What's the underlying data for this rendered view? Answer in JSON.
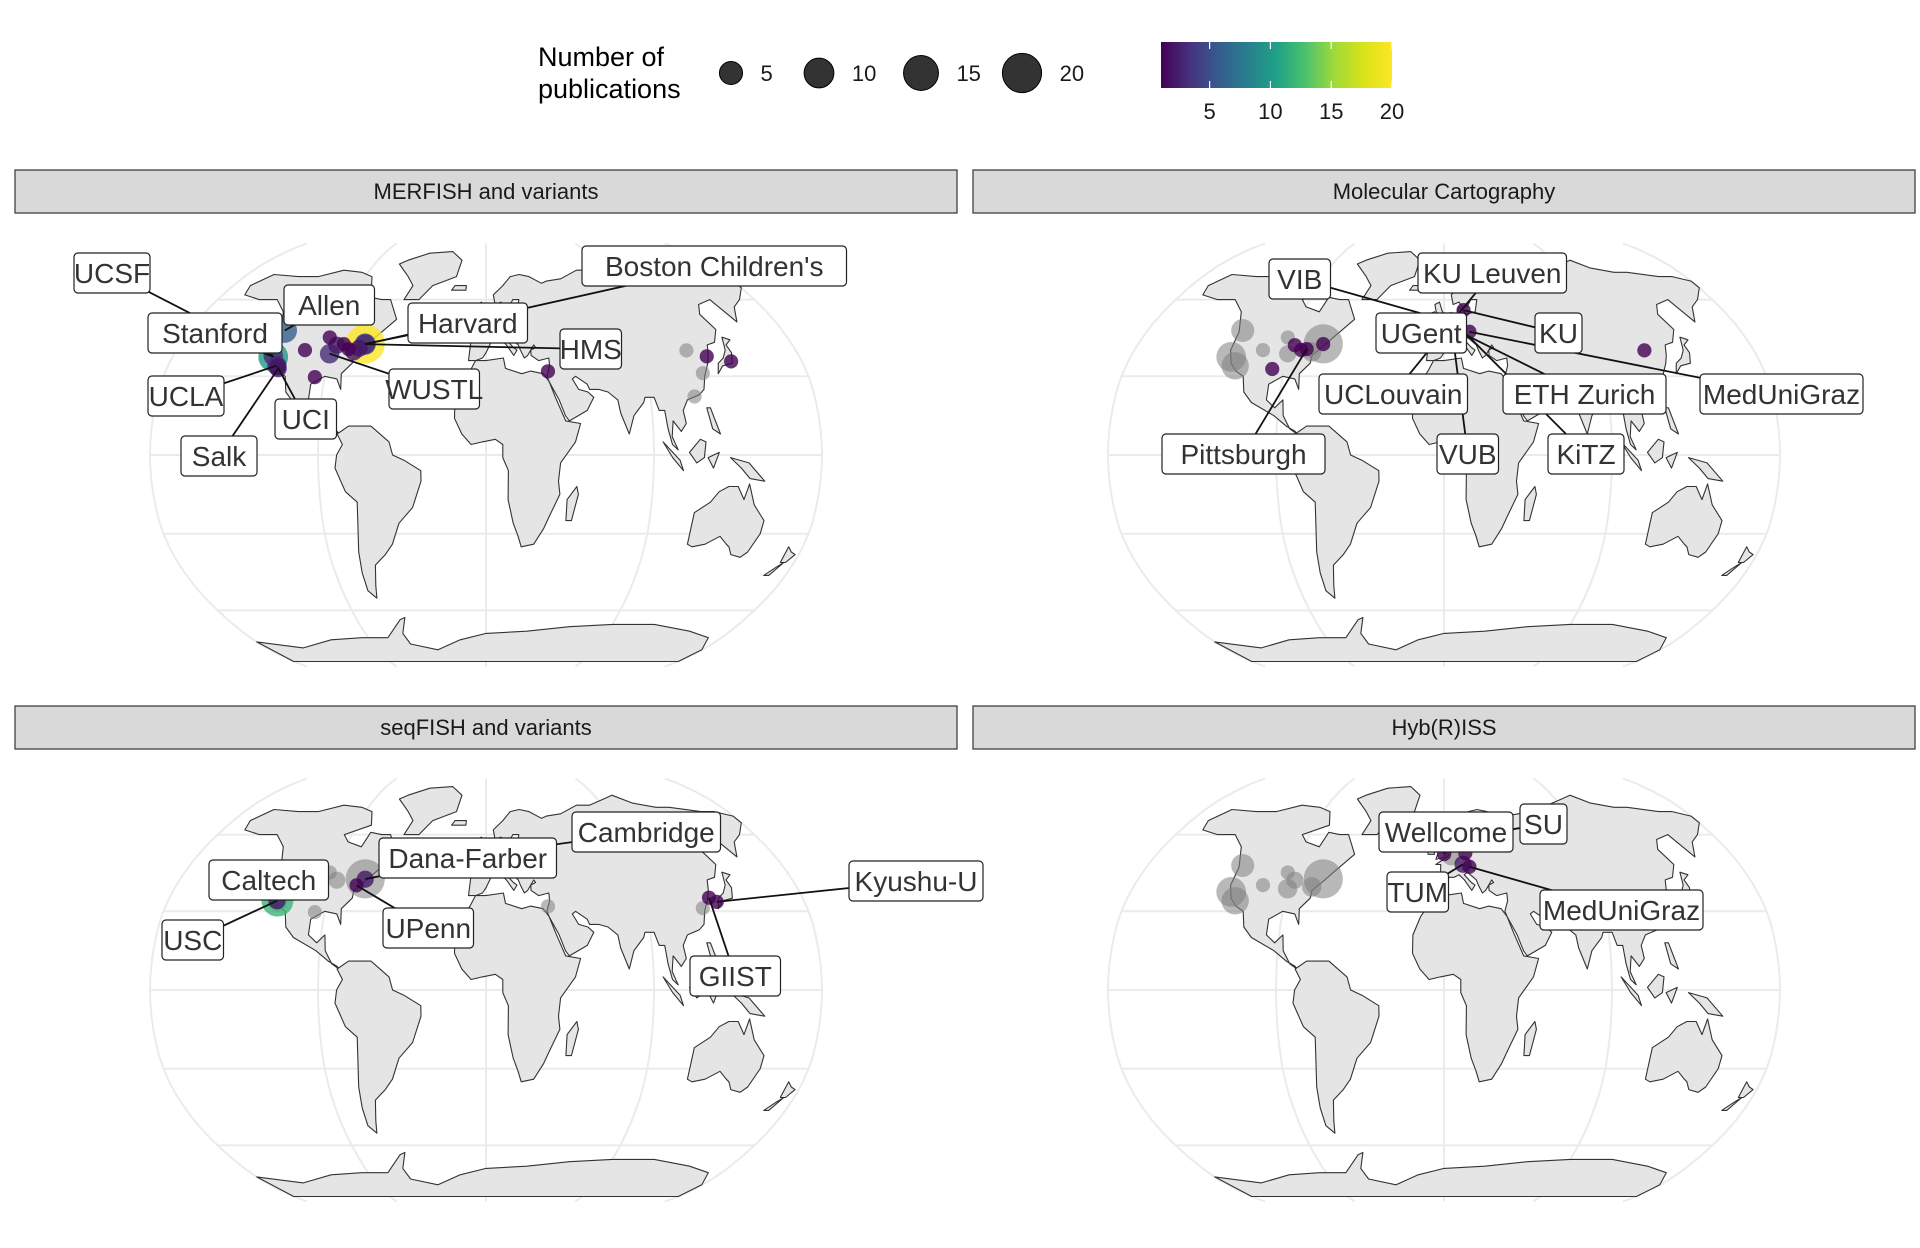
{
  "legend": {
    "size_title_line1": "Number of",
    "size_title_line2": "publications",
    "size_breaks": [
      5,
      10,
      15,
      20
    ],
    "color_breaks": [
      5,
      10,
      15,
      20
    ],
    "color_range": [
      1,
      20
    ],
    "colormap": "viridis"
  },
  "colors": {
    "strip_bg": "#d9d9d9",
    "land": "#e5e5e5",
    "graticule": "#ebebeb",
    "inactive_point": "#808080"
  },
  "chart_data": [
    {
      "type": "scatter",
      "subtype": "geographic bubble map (Robinson projection)",
      "title": "MERFISH and variants",
      "labels": [
        "UCSF",
        "Allen",
        "Stanford",
        "Harvard",
        "Boston Children's",
        "HMS",
        "WUSTL",
        "UCLA",
        "UCI",
        "Salk"
      ],
      "points": [
        {
          "name": "Harvard",
          "lon": -71.1,
          "lat": 42.4,
          "n": 20
        },
        {
          "name": "Boston Children's",
          "lon": -71.1,
          "lat": 42.3,
          "n": 4
        },
        {
          "name": "HMS",
          "lon": -71.1,
          "lat": 42.3,
          "n": 3
        },
        {
          "name": "Allen",
          "lon": -122.3,
          "lat": 47.6,
          "n": 6
        },
        {
          "name": "Stanford",
          "lon": -122.2,
          "lat": 37.4,
          "n": 10
        },
        {
          "name": "UCSF",
          "lon": -122.4,
          "lat": 37.8,
          "n": 3
        },
        {
          "name": "UCLA",
          "lon": -118.4,
          "lat": 34.1,
          "n": 3
        },
        {
          "name": "UCI",
          "lon": -117.8,
          "lat": 33.6,
          "n": 2
        },
        {
          "name": "Salk",
          "lon": -117.2,
          "lat": 32.9,
          "n": 2
        },
        {
          "name": "WUSTL",
          "lon": -90.3,
          "lat": 38.6,
          "n": 3
        },
        {
          "name": "",
          "lon": -93.3,
          "lat": 44.9,
          "n": 1
        },
        {
          "name": "",
          "lon": -87.6,
          "lat": 41.9,
          "n": 2
        },
        {
          "name": "",
          "lon": -83.7,
          "lat": 42.3,
          "n": 1
        },
        {
          "name": "",
          "lon": -80.0,
          "lat": 40.4,
          "n": 1
        },
        {
          "name": "",
          "lon": -76.6,
          "lat": 39.3,
          "n": 2
        },
        {
          "name": "",
          "lon": -74.0,
          "lat": 40.7,
          "n": 2
        },
        {
          "name": "",
          "lon": -105.2,
          "lat": 40.0,
          "n": 1
        },
        {
          "name": "",
          "lon": -95.4,
          "lat": 29.7,
          "n": 1
        },
        {
          "name": "",
          "lon": -0.1,
          "lat": 51.5,
          "n": 2
        },
        {
          "name": "",
          "lon": 4.9,
          "lat": 52.4,
          "n": 1
        },
        {
          "name": "",
          "lon": 8.7,
          "lat": 50.1,
          "n": 1
        },
        {
          "name": "",
          "lon": 13.4,
          "lat": 52.5,
          "n": 1
        },
        {
          "name": "",
          "lon": 34.8,
          "lat": 31.9,
          "n": 1
        },
        {
          "name": "",
          "lon": 126.9,
          "lat": 37.6,
          "n": 1
        },
        {
          "name": "",
          "lon": 139.7,
          "lat": 35.7,
          "n": 1
        }
      ],
      "other_method_points": [
        {
          "lon": 114.2,
          "lat": 22.3,
          "n": 1
        },
        {
          "lon": 121.5,
          "lat": 31.2,
          "n": 1
        },
        {
          "lon": 116.4,
          "lat": 39.9,
          "n": 1
        }
      ]
    },
    {
      "type": "scatter",
      "subtype": "geographic bubble map (Robinson projection)",
      "title": "Molecular Cartography",
      "labels": [
        "VIB",
        "KU Leuven",
        "UGent",
        "KU",
        "UCLouvain",
        "ETH Zurich",
        "MedUniGraz",
        "Pittsburgh",
        "VUB",
        "KiTZ"
      ],
      "points": [
        {
          "name": "VIB",
          "lon": 4.4,
          "lat": 51.0,
          "n": 3
        },
        {
          "name": "KU Leuven",
          "lon": 4.7,
          "lat": 50.9,
          "n": 2
        },
        {
          "name": "UGent",
          "lon": 3.7,
          "lat": 51.1,
          "n": 2
        },
        {
          "name": "KU",
          "lon": 12.6,
          "lat": 55.7,
          "n": 1
        },
        {
          "name": "UCLouvain",
          "lon": 4.6,
          "lat": 50.7,
          "n": 1
        },
        {
          "name": "ETH Zurich",
          "lon": 8.5,
          "lat": 47.4,
          "n": 1
        },
        {
          "name": "MedUniGraz",
          "lon": 15.4,
          "lat": 47.1,
          "n": 1
        },
        {
          "name": "Pittsburgh",
          "lon": -80.0,
          "lat": 40.4,
          "n": 1
        },
        {
          "name": "VUB",
          "lon": 4.4,
          "lat": 50.8,
          "n": 1
        },
        {
          "name": "KiTZ",
          "lon": 8.7,
          "lat": 49.4,
          "n": 1
        },
        {
          "name": "",
          "lon": -87.6,
          "lat": 41.9,
          "n": 1
        },
        {
          "name": "",
          "lon": -83.0,
          "lat": 40.0,
          "n": 1
        },
        {
          "name": "",
          "lon": -71.1,
          "lat": 42.3,
          "n": 1
        },
        {
          "name": "",
          "lon": -96.8,
          "lat": 32.8,
          "n": 1
        },
        {
          "name": "",
          "lon": 116.4,
          "lat": 39.9,
          "n": 1
        }
      ],
      "other_method_points": [
        {
          "lon": -71.1,
          "lat": 42.4,
          "n": 20
        },
        {
          "lon": -122.2,
          "lat": 37.4,
          "n": 10
        },
        {
          "lon": -118.2,
          "lat": 34.0,
          "n": 8
        },
        {
          "lon": -122.3,
          "lat": 47.6,
          "n": 5
        },
        {
          "lon": -76.6,
          "lat": 39.3,
          "n": 3
        },
        {
          "lon": -93.3,
          "lat": 44.9,
          "n": 1
        },
        {
          "lon": -105.2,
          "lat": 40.0,
          "n": 1
        },
        {
          "lon": -90.3,
          "lat": 38.6,
          "n": 2
        },
        {
          "lon": -0.1,
          "lat": 51.5,
          "n": 2
        }
      ]
    },
    {
      "type": "scatter",
      "subtype": "geographic bubble map (Robinson projection)",
      "title": "seqFISH and variants",
      "labels": [
        "Dana-Farber",
        "Cambridge",
        "Caltech",
        "USC",
        "UPenn",
        "Kyushu-U",
        "GIIST"
      ],
      "points": [
        {
          "name": "Caltech",
          "lon": -118.1,
          "lat": 34.1,
          "n": 12
        },
        {
          "name": "USC",
          "lon": -118.3,
          "lat": 34.0,
          "n": 2
        },
        {
          "name": "Dana-Farber",
          "lon": -71.1,
          "lat": 42.3,
          "n": 2
        },
        {
          "name": "UPenn",
          "lon": -75.2,
          "lat": 39.9,
          "n": 1
        },
        {
          "name": "Cambridge",
          "lon": 0.1,
          "lat": 52.2,
          "n": 2
        },
        {
          "name": "Kyushu-U",
          "lon": 130.4,
          "lat": 33.6,
          "n": 1
        },
        {
          "name": "GIIST",
          "lon": 126.8,
          "lat": 35.2,
          "n": 1
        }
      ],
      "other_method_points": [
        {
          "lon": -71.1,
          "lat": 42.4,
          "n": 20
        },
        {
          "lon": -122.2,
          "lat": 37.4,
          "n": 4
        },
        {
          "lon": -117.8,
          "lat": 33.6,
          "n": 3
        },
        {
          "lon": -87.6,
          "lat": 41.9,
          "n": 2
        },
        {
          "lon": -93.3,
          "lat": 44.9,
          "n": 1
        },
        {
          "lon": -105.2,
          "lat": 40.0,
          "n": 1
        },
        {
          "lon": -95.4,
          "lat": 29.7,
          "n": 1
        },
        {
          "lon": 4.9,
          "lat": 52.4,
          "n": 2
        },
        {
          "lon": 8.7,
          "lat": 50.1,
          "n": 2
        },
        {
          "lon": 13.4,
          "lat": 52.5,
          "n": 2
        },
        {
          "lon": 34.8,
          "lat": 31.9,
          "n": 1
        },
        {
          "lon": 121.5,
          "lat": 31.2,
          "n": 1
        }
      ]
    },
    {
      "type": "scatter",
      "subtype": "geographic bubble map (Robinson projection)",
      "title": "Hyb(R)ISS",
      "labels": [
        "Wellcome",
        "SU",
        "TUM",
        "MedUniGraz"
      ],
      "points": [
        {
          "name": "Wellcome",
          "lon": 0.1,
          "lat": 52.1,
          "n": 1
        },
        {
          "name": "SU",
          "lon": 18.1,
          "lat": 59.3,
          "n": 2
        },
        {
          "name": "TUM",
          "lon": 11.6,
          "lat": 48.1,
          "n": 2
        },
        {
          "name": "MedUniGraz",
          "lon": 15.4,
          "lat": 47.1,
          "n": 1
        },
        {
          "name": "",
          "lon": 13.4,
          "lat": 52.5,
          "n": 1
        }
      ],
      "other_method_points": [
        {
          "lon": -71.1,
          "lat": 42.4,
          "n": 20
        },
        {
          "lon": -122.2,
          "lat": 37.4,
          "n": 10
        },
        {
          "lon": -118.2,
          "lat": 34.0,
          "n": 8
        },
        {
          "lon": -122.3,
          "lat": 47.6,
          "n": 5
        },
        {
          "lon": -90.3,
          "lat": 38.6,
          "n": 3
        },
        {
          "lon": -76.6,
          "lat": 39.3,
          "n": 3
        },
        {
          "lon": -87.6,
          "lat": 41.9,
          "n": 2
        },
        {
          "lon": -93.3,
          "lat": 44.9,
          "n": 1
        },
        {
          "lon": -105.2,
          "lat": 40.0,
          "n": 1
        },
        {
          "lon": 4.4,
          "lat": 51.0,
          "n": 2
        },
        {
          "lon": 121.5,
          "lat": 31.2,
          "n": 1
        }
      ]
    }
  ]
}
